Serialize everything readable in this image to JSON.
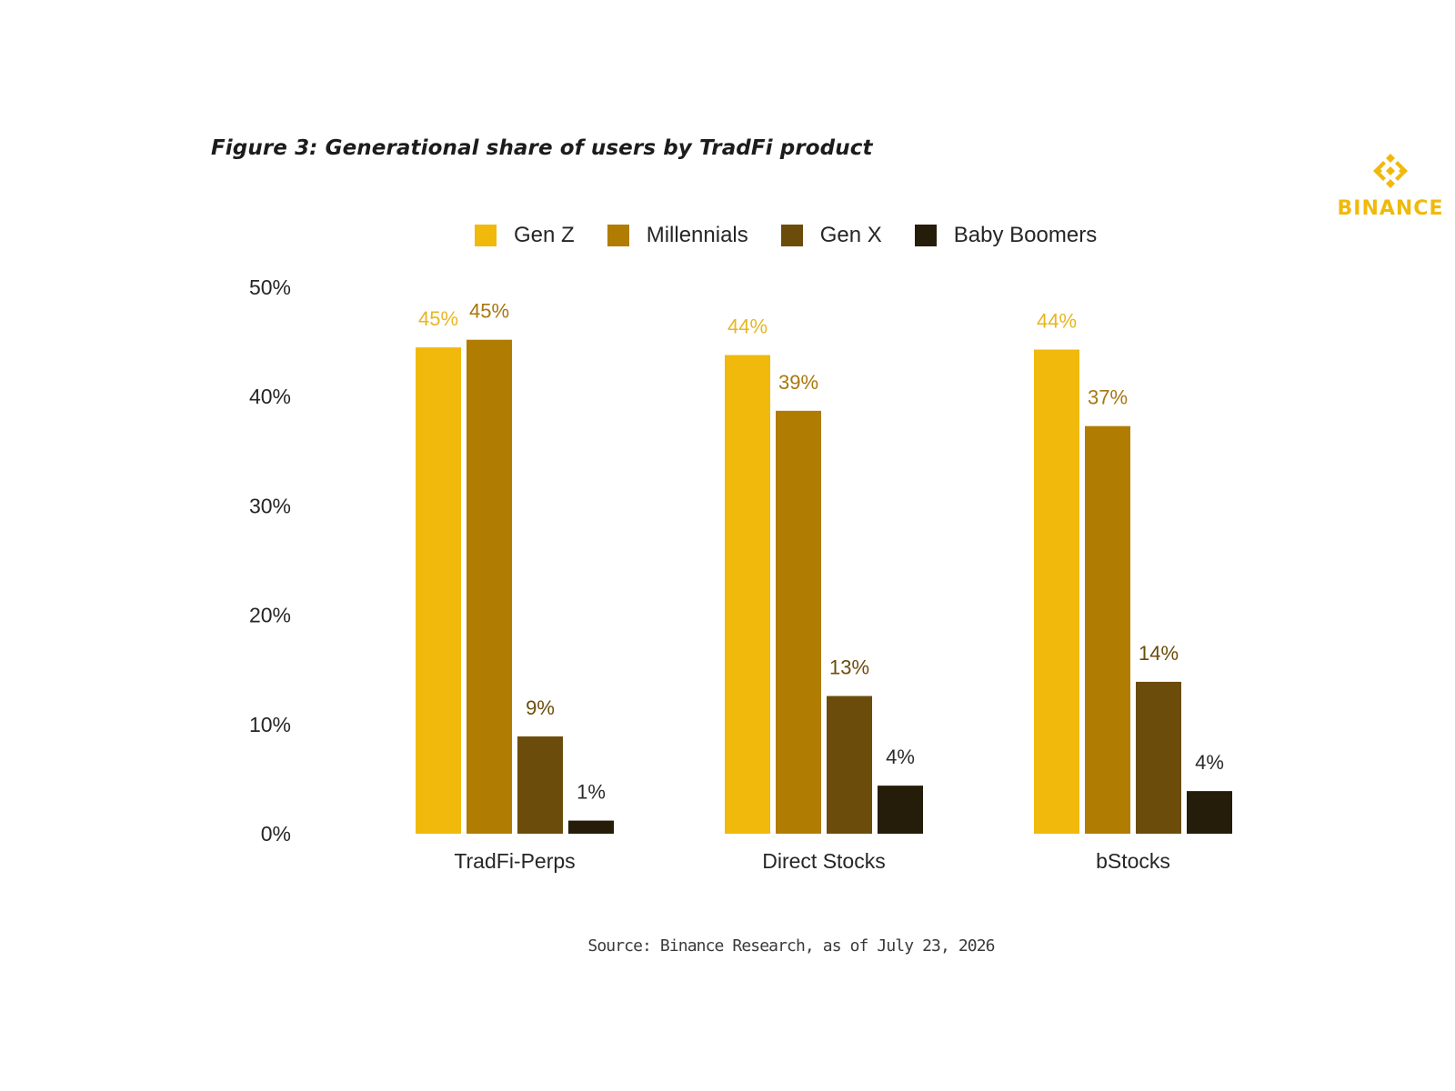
{
  "figure_title": "Figure 3: Generational share of users by TradFi product",
  "brand": {
    "name": "BINANCE",
    "color": "#F0B90B",
    "icon": "binance-logo-icon"
  },
  "source": "Source: Binance Research, as of July 23, 2026",
  "chart_data": {
    "type": "bar",
    "title": "",
    "xlabel": "",
    "ylabel": "",
    "categories": [
      "TradFi-Perps",
      "Direct Stocks",
      "bStocks"
    ],
    "y_tick_labels": [
      "0%",
      "10%",
      "20%",
      "30%",
      "40%",
      "50%"
    ],
    "y_ticks": [
      0,
      10,
      20,
      30,
      40,
      50
    ],
    "ylim": [
      0,
      50
    ],
    "grid": false,
    "legend_position": "top-center",
    "series": [
      {
        "name": "Gen Z",
        "color": "#F0B90B",
        "label_color": "#E9B523",
        "values": [
          44.5,
          43.8,
          44.3
        ],
        "labels": [
          "45%",
          "44%",
          "44%"
        ]
      },
      {
        "name": "Millennials",
        "color": "#B17C02",
        "label_color": "#A8770C",
        "values": [
          45.2,
          38.7,
          37.3
        ],
        "labels": [
          "45%",
          "39%",
          "37%"
        ]
      },
      {
        "name": "Gen X",
        "color": "#6B4C0B",
        "label_color": "#6B4C0B",
        "values": [
          8.9,
          12.6,
          13.9
        ],
        "labels": [
          "9%",
          "13%",
          "14%"
        ]
      },
      {
        "name": "Baby Boomers",
        "color": "#251C0A",
        "label_color": "#2B2B2B",
        "values": [
          1.2,
          4.4,
          3.9
        ],
        "labels": [
          "1%",
          "4%",
          "4%"
        ]
      }
    ]
  }
}
